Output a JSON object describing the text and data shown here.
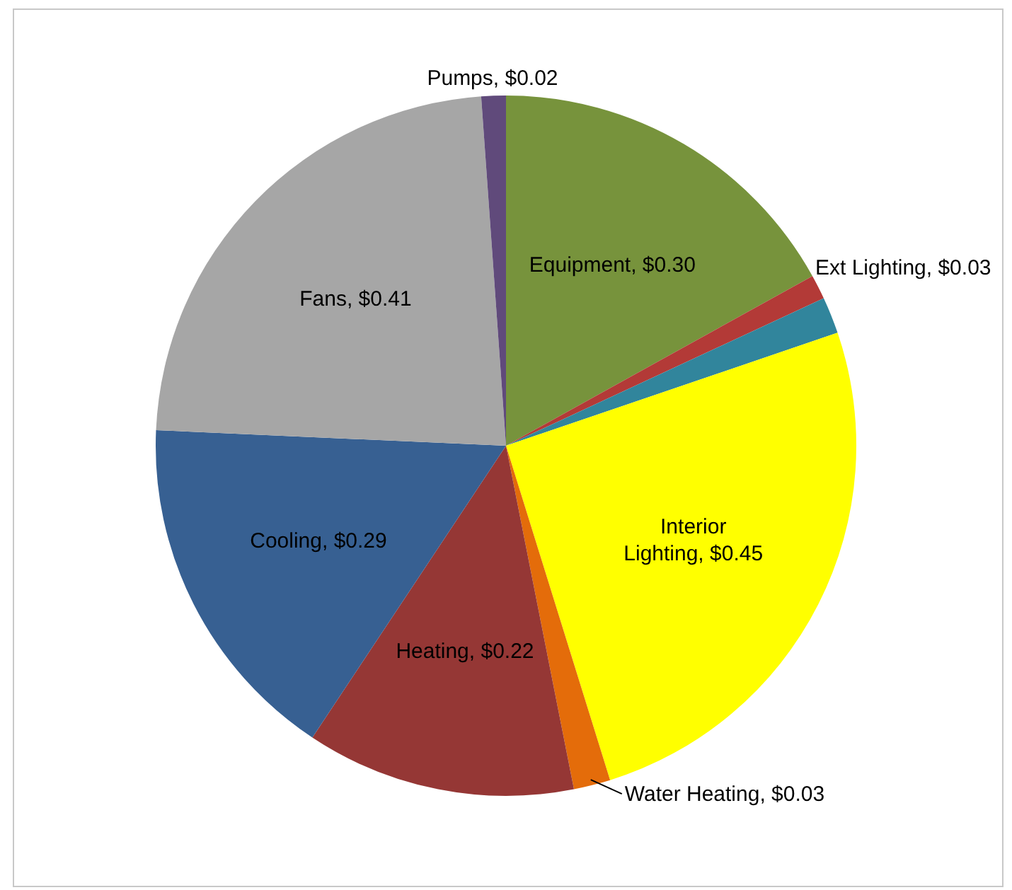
{
  "chart_data": {
    "type": "pie",
    "categories": [
      "Equipment",
      null,
      "Ext Lighting",
      "Interior Lighting",
      "Water Heating",
      "Heating",
      "Cooling",
      "Fans",
      "Pumps"
    ],
    "values": [
      0.3,
      0.02,
      0.03,
      0.45,
      0.03,
      0.22,
      0.29,
      0.41,
      0.02
    ],
    "value_labels": [
      "$0.30",
      null,
      "$0.03",
      "$0.45",
      "$0.03",
      "$0.22",
      "$0.29",
      "$0.41",
      "$0.02"
    ],
    "colors": [
      "#77933c",
      "#b33a37",
      "#31859c",
      "#ffff00",
      "#e46c0a",
      "#953735",
      "#376092",
      "#a6a6a6",
      "#604a7b"
    ],
    "legend": false
  }
}
